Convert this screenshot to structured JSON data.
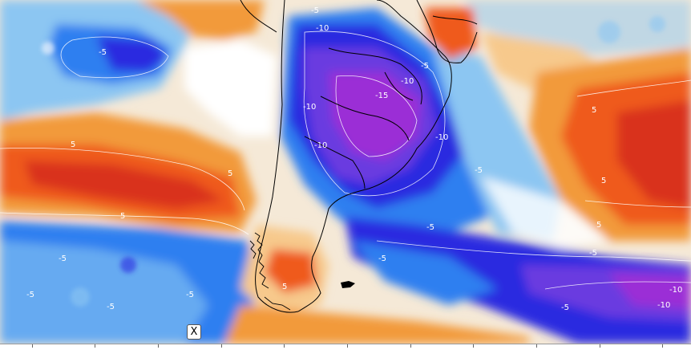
{
  "map": {
    "type": "temperature-anomaly-map",
    "colors": {
      "cold_extreme": "#9b2fd6",
      "cold_strong": "#6a3be0",
      "cold_deep": "#2a2be0",
      "cold_mid": "#2f7ff0",
      "cold_light": "#8cc6f2",
      "neutral": "#ffffff",
      "warm_light": "#f7c98c",
      "warm_mid": "#f29a3a",
      "warm_strong": "#ef5a1e",
      "warm_deep": "#d9301a",
      "coastline": "#000000",
      "contour": "#ffffff"
    },
    "contour_labels": [
      "-5",
      "-5",
      "-5",
      "-5",
      "-5",
      "-5",
      "-5",
      "-5",
      "-5",
      "-5",
      "-5",
      "-5",
      "-10",
      "-10",
      "-10",
      "-10",
      "-10",
      "-10",
      "-10",
      "-15",
      "5",
      "5",
      "5",
      "5",
      "5",
      "5",
      "5"
    ],
    "marker_label": "X"
  }
}
